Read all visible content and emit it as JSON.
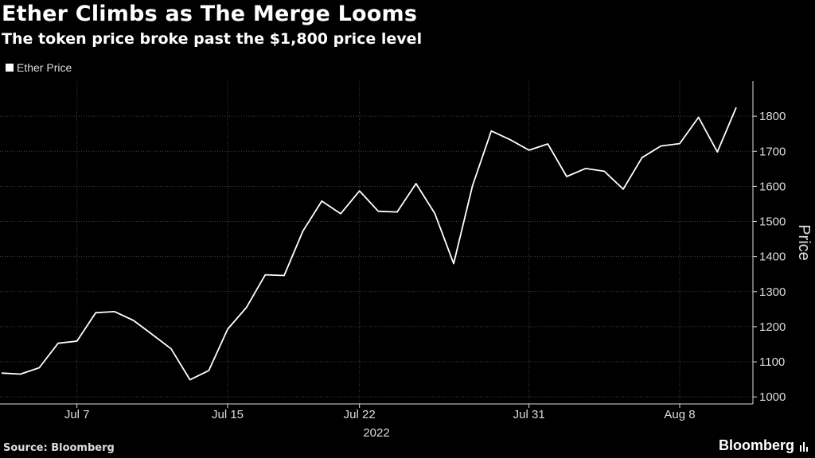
{
  "header": {
    "title": "Ether Climbs as The Merge Looms",
    "subtitle": "The token price broke past the $1,800 price level"
  },
  "footer": {
    "source": "Source: Bloomberg",
    "brand": "Bloomberg"
  },
  "colors": {
    "background": "#000000",
    "line": "#ffffff",
    "grid": "#444444"
  },
  "chart_data": {
    "type": "line",
    "title": "Ether Climbs as The Merge Looms",
    "subtitle": "The token price broke past the $1,800 price level",
    "xlabel": "2022",
    "ylabel": "Price",
    "y_axis_side": "right",
    "ylim": [
      980,
      1900
    ],
    "yticks": [
      1000,
      1100,
      1200,
      1300,
      1400,
      1500,
      1600,
      1700,
      1800
    ],
    "xlim": [
      "2022-07-03",
      "2022-08-11"
    ],
    "xticks": [
      {
        "date": "2022-07-07",
        "label": "Jul 7"
      },
      {
        "date": "2022-07-15",
        "label": "Jul 15"
      },
      {
        "date": "2022-07-22",
        "label": "Jul 22"
      },
      {
        "date": "2022-07-31",
        "label": "Jul 31"
      },
      {
        "date": "2022-08-08",
        "label": "Aug 8"
      }
    ],
    "grid": true,
    "legend_position": "top-left",
    "series": [
      {
        "name": "Ether Price",
        "points": [
          [
            "2022-07-03",
            1068
          ],
          [
            "2022-07-04",
            1065
          ],
          [
            "2022-07-05",
            1083
          ],
          [
            "2022-07-06",
            1153
          ],
          [
            "2022-07-07",
            1159
          ],
          [
            "2022-07-08",
            1240
          ],
          [
            "2022-07-09",
            1243
          ],
          [
            "2022-07-10",
            1218
          ],
          [
            "2022-07-11",
            1178
          ],
          [
            "2022-07-12",
            1137
          ],
          [
            "2022-07-13",
            1049
          ],
          [
            "2022-07-14",
            1075
          ],
          [
            "2022-07-15",
            1193
          ],
          [
            "2022-07-16",
            1255
          ],
          [
            "2022-07-17",
            1348
          ],
          [
            "2022-07-18",
            1346
          ],
          [
            "2022-07-19",
            1473
          ],
          [
            "2022-07-20",
            1558
          ],
          [
            "2022-07-21",
            1522
          ],
          [
            "2022-07-22",
            1587
          ],
          [
            "2022-07-23",
            1529
          ],
          [
            "2022-07-24",
            1527
          ],
          [
            "2022-07-25",
            1608
          ],
          [
            "2022-07-26",
            1523
          ],
          [
            "2022-07-27",
            1380
          ],
          [
            "2022-07-28",
            1602
          ],
          [
            "2022-07-29",
            1758
          ],
          [
            "2022-07-30",
            1733
          ],
          [
            "2022-07-31",
            1703
          ],
          [
            "2022-08-01",
            1721
          ],
          [
            "2022-08-02",
            1628
          ],
          [
            "2022-08-03",
            1651
          ],
          [
            "2022-08-04",
            1643
          ],
          [
            "2022-08-05",
            1592
          ],
          [
            "2022-08-06",
            1682
          ],
          [
            "2022-08-07",
            1715
          ],
          [
            "2022-08-08",
            1722
          ],
          [
            "2022-08-09",
            1797
          ],
          [
            "2022-08-10",
            1698
          ],
          [
            "2022-08-11",
            1825
          ]
        ]
      }
    ]
  }
}
